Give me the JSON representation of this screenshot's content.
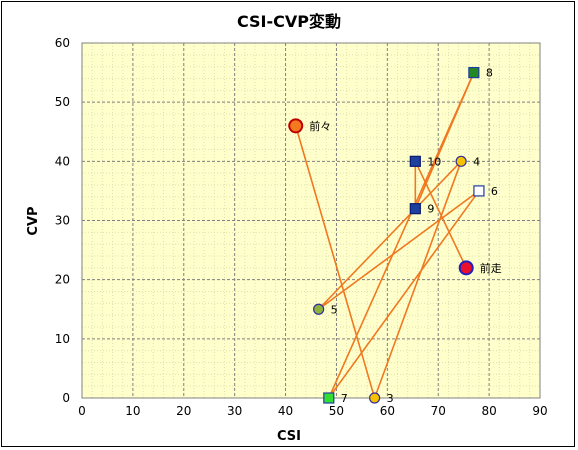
{
  "chart_data": {
    "type": "scatter",
    "title": "CSI-CVP変動",
    "xlabel": "CSI",
    "ylabel": "CVP",
    "xlim": [
      0,
      90
    ],
    "ylim": [
      0,
      60
    ],
    "xticks": [
      0,
      10,
      20,
      30,
      40,
      50,
      60,
      70,
      80,
      90
    ],
    "yticks": [
      0,
      10,
      20,
      30,
      40,
      50,
      60
    ],
    "grid": true,
    "background": "#ffffcc",
    "line_color": "#f07820",
    "path_order": [
      "前々",
      "3",
      "4",
      "5",
      "6",
      "7",
      "8",
      "9",
      "10",
      "前走"
    ],
    "points": [
      {
        "label": "前々",
        "x": 42,
        "y": 46,
        "marker": "circle-large",
        "fill": "#f47a20",
        "stroke": "#c00000"
      },
      {
        "label": "3",
        "x": 57.5,
        "y": 0,
        "marker": "circle",
        "fill": "#f7c200",
        "stroke": "#3030a0"
      },
      {
        "label": "4",
        "x": 74.5,
        "y": 40,
        "marker": "circle",
        "fill": "#f7c200",
        "stroke": "#3030a0"
      },
      {
        "label": "5",
        "x": 46.5,
        "y": 15,
        "marker": "circle",
        "fill": "#8fb33a",
        "stroke": "#3030a0"
      },
      {
        "label": "6",
        "x": 78,
        "y": 35,
        "marker": "square",
        "fill": "#ffffff",
        "stroke": "#1f3f9f"
      },
      {
        "label": "7",
        "x": 48.5,
        "y": 0,
        "marker": "square",
        "fill": "#33dd33",
        "stroke": "#1f3f9f"
      },
      {
        "label": "8",
        "x": 77,
        "y": 55,
        "marker": "square",
        "fill": "#228822",
        "stroke": "#1f3f9f"
      },
      {
        "label": "9",
        "x": 65.5,
        "y": 32,
        "marker": "square",
        "fill": "#1f3f9f",
        "stroke": "#0a1a70"
      },
      {
        "label": "10",
        "x": 65.5,
        "y": 40,
        "marker": "square",
        "fill": "#1f3f9f",
        "stroke": "#0a1a70"
      },
      {
        "label": "前走",
        "x": 75.5,
        "y": 22,
        "marker": "circle-large",
        "fill": "#e8102a",
        "stroke": "#2020c0"
      }
    ]
  }
}
